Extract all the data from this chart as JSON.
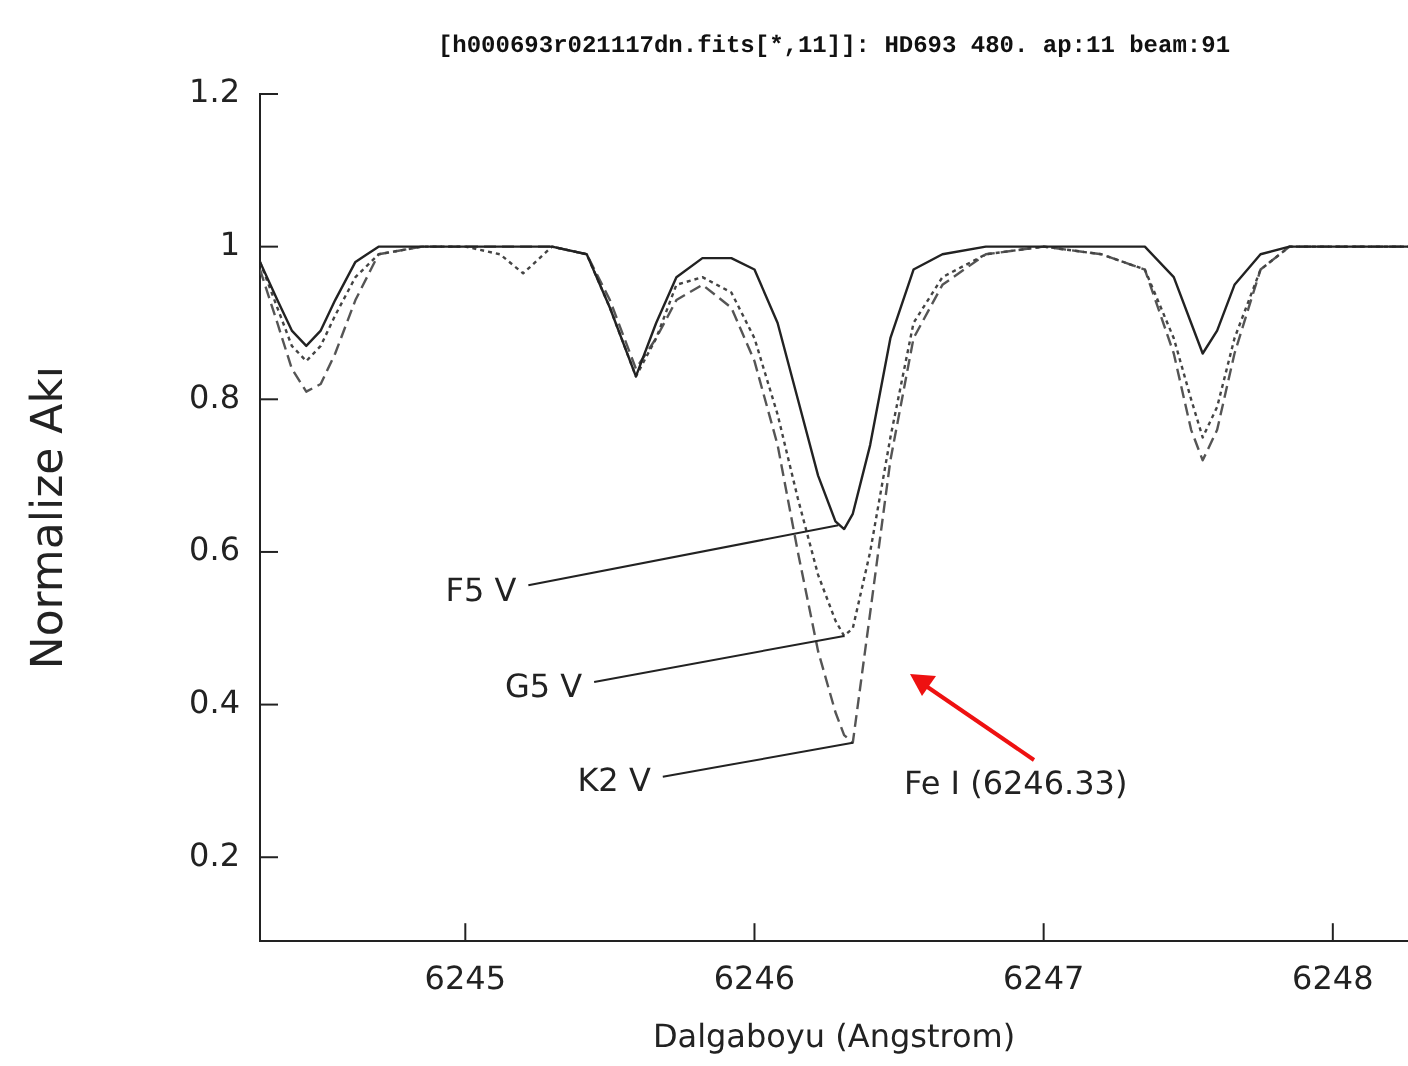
{
  "chart_data": {
    "type": "line",
    "title": "[h000693r021117dn.fits[*,11]]: HD693 480. ap:11 beam:91",
    "xlabel": "Dalgaboyu (Angstrom)",
    "ylabel": "Normalize Akı",
    "x": [
      6244.29,
      6244.35,
      6244.4,
      6244.45,
      6244.5,
      6244.55,
      6244.62,
      6244.7,
      6244.85,
      6245.0,
      6245.12,
      6245.2,
      6245.3,
      6245.42,
      6245.5,
      6245.59,
      6245.66,
      6245.73,
      6245.82,
      6245.92,
      6246.0,
      6246.08,
      6246.15,
      6246.22,
      6246.28,
      6246.31,
      6246.34,
      6246.4,
      6246.47,
      6246.55,
      6246.65,
      6246.8,
      6247.0,
      6247.2,
      6247.35,
      6247.45,
      6247.51,
      6247.55,
      6247.6,
      6247.66,
      6247.75,
      6247.85,
      6248.0,
      6248.26
    ],
    "series": [
      {
        "color": "#222222",
        "line_style": "solid",
        "values": [
          0.98,
          0.93,
          0.89,
          0.87,
          0.89,
          0.93,
          0.98,
          1.0,
          1.0,
          1.0,
          1.0,
          1.0,
          1.0,
          0.99,
          0.92,
          0.83,
          0.9,
          0.96,
          0.985,
          0.985,
          0.97,
          0.9,
          0.8,
          0.7,
          0.64,
          0.63,
          0.65,
          0.74,
          0.88,
          0.97,
          0.99,
          1.0,
          1.0,
          1.0,
          1.0,
          0.96,
          0.9,
          0.86,
          0.89,
          0.95,
          0.99,
          1.0,
          1.0,
          1.0
        ]
      },
      {
        "color": "#444444",
        "line_style": "dotted",
        "values": [
          0.98,
          0.92,
          0.87,
          0.85,
          0.87,
          0.91,
          0.96,
          0.99,
          1.0,
          1.0,
          0.99,
          0.965,
          1.0,
          0.99,
          0.92,
          0.83,
          0.88,
          0.95,
          0.96,
          0.94,
          0.88,
          0.78,
          0.67,
          0.57,
          0.51,
          0.49,
          0.5,
          0.6,
          0.75,
          0.9,
          0.96,
          0.99,
          1.0,
          0.99,
          0.97,
          0.88,
          0.8,
          0.75,
          0.79,
          0.88,
          0.97,
          1.0,
          1.0,
          1.0
        ]
      },
      {
        "color": "#555555",
        "line_style": "dashed",
        "values": [
          0.97,
          0.9,
          0.84,
          0.81,
          0.82,
          0.86,
          0.93,
          0.99,
          1.0,
          1.0,
          1.0,
          1.0,
          1.0,
          0.99,
          0.93,
          0.84,
          0.88,
          0.93,
          0.95,
          0.92,
          0.85,
          0.74,
          0.6,
          0.47,
          0.39,
          0.36,
          0.35,
          0.52,
          0.72,
          0.88,
          0.95,
          0.99,
          1.0,
          0.99,
          0.97,
          0.86,
          0.76,
          0.72,
          0.76,
          0.86,
          0.97,
          1.0,
          1.0,
          1.0
        ]
      }
    ],
    "xlim": [
      6244.29,
      6248.26
    ],
    "xticks": [
      6245,
      6246,
      6247,
      6248
    ],
    "ylim": [
      0.09,
      1.2
    ],
    "yticks": [
      0.2,
      0.4,
      0.6,
      0.8,
      1,
      1.2
    ],
    "grid": false,
    "legend": false,
    "marker": "none",
    "annotations": [
      {
        "text": "F5 V",
        "x": 6246.29,
        "y": 0.635
      },
      {
        "text": "G5 V",
        "x": 6246.31,
        "y": 0.49
      },
      {
        "text": "K2 V",
        "x": 6246.34,
        "y": 0.35
      },
      "Fe I (6246.33)"
    ]
  }
}
